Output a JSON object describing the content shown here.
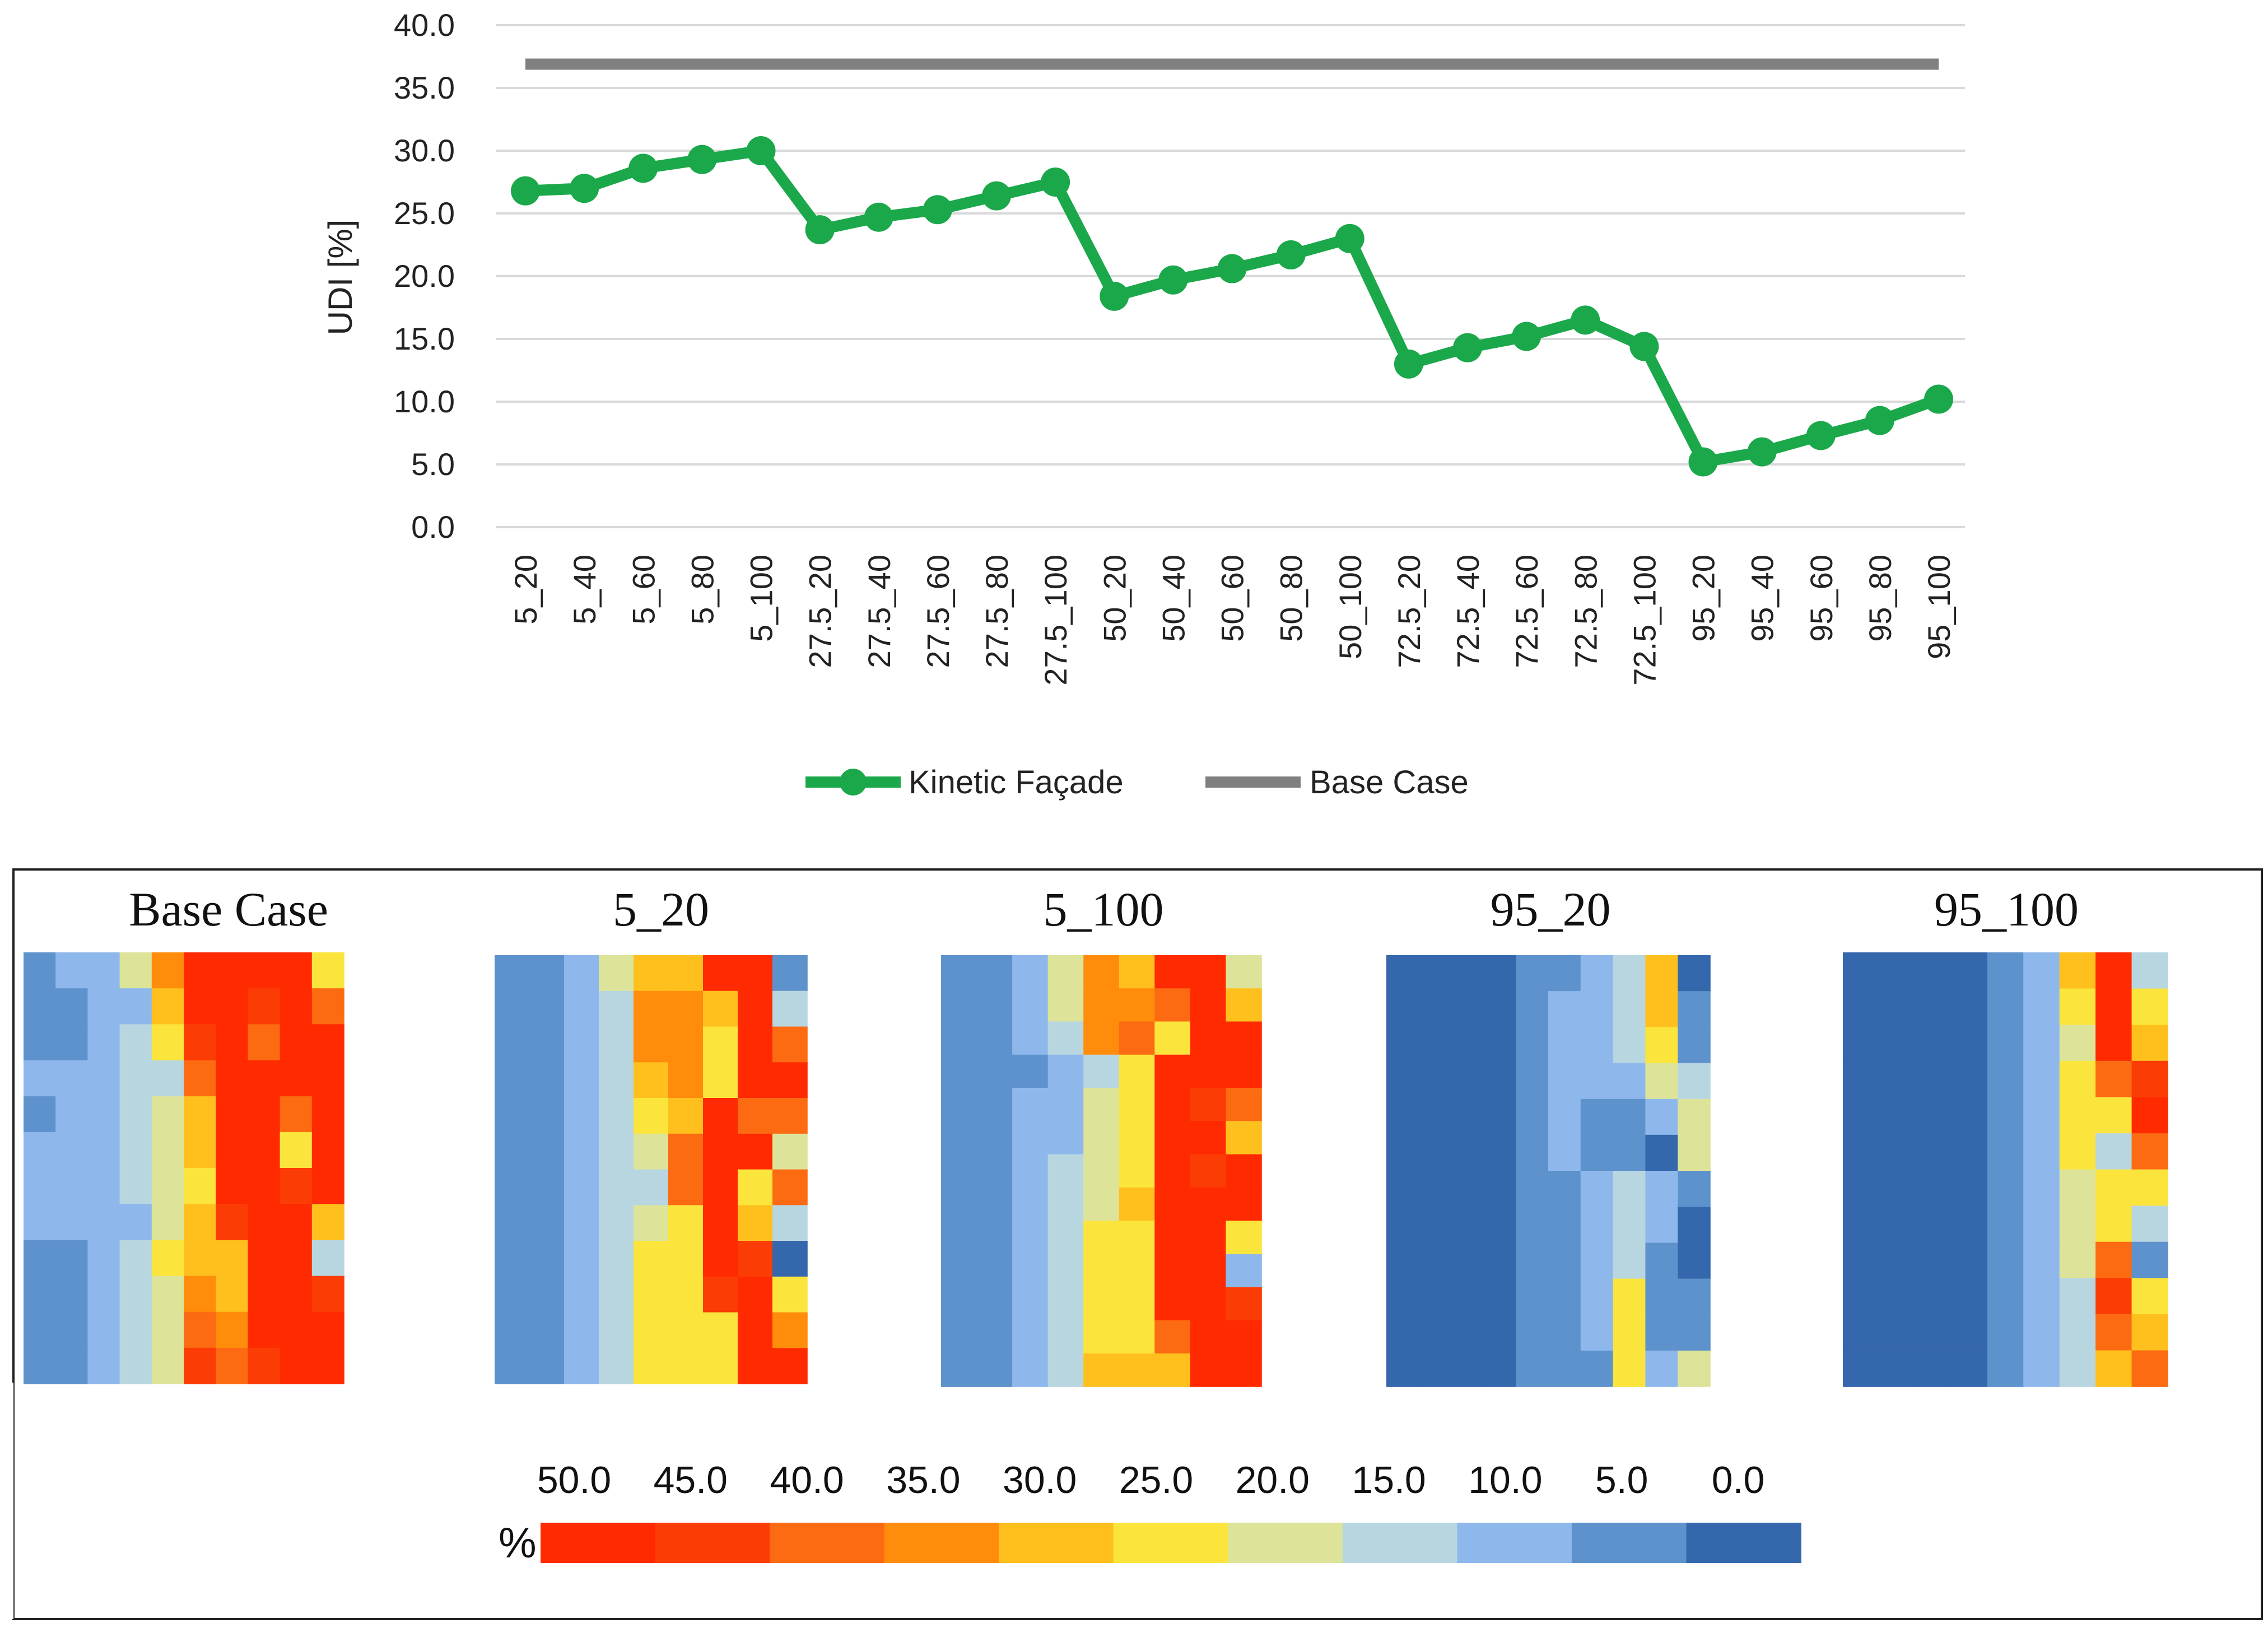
{
  "chart_data": [
    {
      "type": "line",
      "title": "",
      "xlabel": "",
      "ylabel": "UDI [%]",
      "ylim": [
        0,
        40
      ],
      "yticks": [
        "0.0",
        "5.0",
        "10.0",
        "15.0",
        "20.0",
        "25.0",
        "30.0",
        "35.0",
        "40.0"
      ],
      "categories": [
        "5_20",
        "5_40",
        "5_60",
        "5_80",
        "5_100",
        "27.5_20",
        "27.5_40",
        "27.5_60",
        "27.5_80",
        "27.5_100",
        "50_20",
        "50_40",
        "50_60",
        "50_80",
        "50_100",
        "72.5_20",
        "72.5_40",
        "72.5_60",
        "72.5_80",
        "72.5_100",
        "95_20",
        "95_40",
        "95_60",
        "95_80",
        "95_100"
      ],
      "series": [
        {
          "name": "Kinetic Façade",
          "color": "#1ba84a",
          "values": [
            26.8,
            27.0,
            28.6,
            29.3,
            30.0,
            23.7,
            24.7,
            25.3,
            26.4,
            27.5,
            18.4,
            19.7,
            20.6,
            21.7,
            23.0,
            13.0,
            14.3,
            15.2,
            16.5,
            14.4,
            5.2,
            6.0,
            7.3,
            8.5,
            10.2
          ]
        },
        {
          "name": "Base Case",
          "color": "#808080",
          "values": [
            36.9,
            36.9,
            36.9,
            36.9,
            36.9,
            36.9,
            36.9,
            36.9,
            36.9,
            36.9,
            36.9,
            36.9,
            36.9,
            36.9,
            36.9,
            36.9,
            36.9,
            36.9,
            36.9,
            36.9,
            36.9,
            36.9,
            36.9,
            36.9,
            36.9
          ]
        }
      ],
      "legend": "bottom"
    },
    {
      "type": "heatmap",
      "scale_unit": "%",
      "scale_values": [
        "50.0",
        "45.0",
        "40.0",
        "35.0",
        "30.0",
        "25.0",
        "20.0",
        "15.0",
        "10.0",
        "5.0",
        "0.0"
      ],
      "scale_colors": [
        "#ff2a00",
        "#fc3c05",
        "#fc6a12",
        "#ff8c0a",
        "#ffc01e",
        "#fbe53c",
        "#dde49a",
        "#b8d6e0",
        "#8eb8ec",
        "#5e92cc",
        "#3567ac"
      ],
      "maps": [
        {
          "title": "Base Case",
          "grid": [
            [
              9,
              8,
              8,
              6,
              3,
              0,
              0,
              0,
              0,
              5
            ],
            [
              9,
              9,
              8,
              8,
              4,
              0,
              0,
              1,
              0,
              2
            ],
            [
              9,
              9,
              8,
              7,
              5,
              1,
              0,
              2,
              0,
              0
            ],
            [
              8,
              8,
              8,
              7,
              7,
              2,
              0,
              0,
              0,
              0
            ],
            [
              9,
              8,
              8,
              7,
              6,
              4,
              0,
              0,
              2,
              0
            ],
            [
              8,
              8,
              8,
              7,
              6,
              4,
              0,
              0,
              5,
              0
            ],
            [
              8,
              8,
              8,
              7,
              6,
              5,
              0,
              0,
              1,
              0
            ],
            [
              8,
              8,
              8,
              8,
              6,
              4,
              1,
              0,
              0,
              4
            ],
            [
              9,
              9,
              8,
              7,
              5,
              4,
              4,
              0,
              0,
              7
            ],
            [
              9,
              9,
              8,
              7,
              6,
              3,
              4,
              0,
              0,
              1
            ],
            [
              9,
              9,
              8,
              7,
              6,
              2,
              3,
              0,
              0,
              0
            ],
            [
              9,
              9,
              8,
              7,
              6,
              1,
              2,
              1,
              0,
              0
            ]
          ]
        },
        {
          "title": "5_20",
          "grid": [
            [
              9,
              9,
              8,
              6,
              4,
              4,
              0,
              0,
              9
            ],
            [
              9,
              9,
              8,
              7,
              3,
              3,
              4,
              0,
              7
            ],
            [
              9,
              9,
              8,
              7,
              3,
              3,
              5,
              0,
              2
            ],
            [
              9,
              9,
              8,
              7,
              4,
              3,
              5,
              0,
              0
            ],
            [
              9,
              9,
              8,
              7,
              5,
              4,
              0,
              2,
              2
            ],
            [
              9,
              9,
              8,
              7,
              6,
              2,
              0,
              0,
              6
            ],
            [
              9,
              9,
              8,
              7,
              7,
              2,
              0,
              5,
              2
            ],
            [
              9,
              9,
              8,
              7,
              6,
              5,
              0,
              4,
              7
            ],
            [
              9,
              9,
              8,
              7,
              5,
              5,
              0,
              1,
              10
            ],
            [
              9,
              9,
              8,
              7,
              5,
              5,
              1,
              0,
              5
            ],
            [
              9,
              9,
              8,
              7,
              5,
              5,
              5,
              0,
              3
            ],
            [
              9,
              9,
              8,
              7,
              5,
              5,
              5,
              0,
              0
            ]
          ]
        },
        {
          "title": "5_100",
          "grid": [
            [
              9,
              9,
              8,
              6,
              3,
              4,
              0,
              0,
              6
            ],
            [
              9,
              9,
              8,
              6,
              3,
              3,
              2,
              0,
              4
            ],
            [
              9,
              9,
              8,
              7,
              3,
              2,
              5,
              0,
              0
            ],
            [
              9,
              9,
              9,
              8,
              7,
              5,
              0,
              0,
              0
            ],
            [
              9,
              9,
              8,
              8,
              6,
              5,
              0,
              1,
              2
            ],
            [
              9,
              9,
              8,
              8,
              6,
              5,
              0,
              0,
              4
            ],
            [
              9,
              9,
              8,
              7,
              6,
              5,
              0,
              1,
              0
            ],
            [
              9,
              9,
              8,
              7,
              6,
              4,
              0,
              0,
              0
            ],
            [
              9,
              9,
              8,
              7,
              5,
              5,
              0,
              0,
              5
            ],
            [
              9,
              9,
              8,
              7,
              5,
              5,
              0,
              0,
              8
            ],
            [
              9,
              9,
              8,
              7,
              5,
              5,
              0,
              0,
              1
            ],
            [
              9,
              9,
              8,
              7,
              5,
              5,
              2,
              0,
              0
            ],
            [
              9,
              9,
              8,
              7,
              4,
              4,
              4,
              0,
              0
            ]
          ]
        },
        {
          "title": "95_20",
          "grid": [
            [
              10,
              10,
              10,
              10,
              9,
              9,
              8,
              7,
              4,
              10
            ],
            [
              10,
              10,
              10,
              10,
              9,
              8,
              8,
              7,
              4,
              9
            ],
            [
              10,
              10,
              10,
              10,
              9,
              8,
              8,
              7,
              5,
              9
            ],
            [
              10,
              10,
              10,
              10,
              9,
              8,
              8,
              8,
              6,
              7
            ],
            [
              10,
              10,
              10,
              10,
              9,
              8,
              9,
              9,
              8,
              6
            ],
            [
              10,
              10,
              10,
              10,
              9,
              8,
              9,
              9,
              10,
              6
            ],
            [
              10,
              10,
              10,
              10,
              9,
              9,
              8,
              7,
              8,
              9
            ],
            [
              10,
              10,
              10,
              10,
              9,
              9,
              8,
              7,
              8,
              10
            ],
            [
              10,
              10,
              10,
              10,
              9,
              9,
              8,
              7,
              9,
              10
            ],
            [
              10,
              10,
              10,
              10,
              9,
              9,
              8,
              5,
              9,
              9
            ],
            [
              10,
              10,
              10,
              10,
              9,
              9,
              8,
              5,
              9,
              9
            ],
            [
              10,
              10,
              10,
              10,
              9,
              9,
              9,
              5,
              8,
              6
            ]
          ]
        },
        {
          "title": "95_100",
          "grid": [
            [
              10,
              10,
              10,
              10,
              9,
              8,
              4,
              0,
              7
            ],
            [
              10,
              10,
              10,
              10,
              9,
              8,
              5,
              0,
              5
            ],
            [
              10,
              10,
              10,
              10,
              9,
              8,
              6,
              0,
              4
            ],
            [
              10,
              10,
              10,
              10,
              9,
              8,
              5,
              2,
              1
            ],
            [
              10,
              10,
              10,
              10,
              9,
              8,
              5,
              5,
              0
            ],
            [
              10,
              10,
              10,
              10,
              9,
              8,
              5,
              7,
              2
            ],
            [
              10,
              10,
              10,
              10,
              9,
              8,
              6,
              5,
              5
            ],
            [
              10,
              10,
              10,
              10,
              9,
              8,
              6,
              5,
              7
            ],
            [
              10,
              10,
              10,
              10,
              9,
              8,
              6,
              2,
              9
            ],
            [
              10,
              10,
              10,
              10,
              9,
              8,
              7,
              1,
              5
            ],
            [
              10,
              10,
              10,
              10,
              9,
              8,
              7,
              2,
              4
            ],
            [
              10,
              10,
              10,
              10,
              9,
              8,
              7,
              4,
              2
            ]
          ]
        }
      ]
    }
  ]
}
